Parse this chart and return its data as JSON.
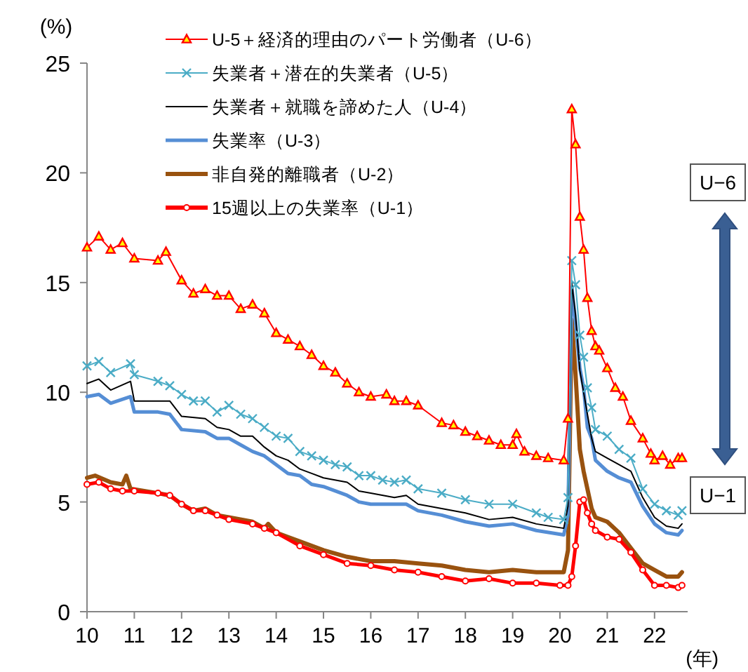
{
  "chart_data": {
    "type": "line",
    "xlabel": "(年)",
    "ylabel": "(%)",
    "xlim": [
      10,
      22.7
    ],
    "xticks": [
      10,
      11,
      12,
      13,
      14,
      15,
      16,
      17,
      18,
      19,
      20,
      21,
      22
    ],
    "ylim": [
      0,
      25
    ],
    "yticks": [
      0,
      5,
      10,
      15,
      20,
      25
    ],
    "grid": false,
    "legend": "top left",
    "annotations": [
      "U−6",
      "U−1"
    ],
    "series": [
      {
        "name": "U-5＋経済的理由のパート労働者（U-6）",
        "color": "#ff0000",
        "marker": "triangle",
        "x": [
          10,
          10.25,
          10.5,
          10.75,
          11,
          11.5,
          11.67,
          12,
          12.25,
          12.5,
          12.75,
          13,
          13.25,
          13.5,
          13.75,
          14,
          14.25,
          14.5,
          14.75,
          15,
          15.25,
          15.5,
          15.75,
          16,
          16.33,
          16.5,
          16.75,
          17,
          17.5,
          17.75,
          18,
          18.25,
          18.5,
          18.75,
          19,
          19.08,
          19.25,
          19.5,
          19.75,
          20.08,
          20.17,
          20.25,
          20.33,
          20.42,
          20.5,
          20.58,
          20.67,
          20.75,
          20.83,
          21,
          21.17,
          21.33,
          21.5,
          21.75,
          21.92,
          22,
          22.17,
          22.33,
          22.5,
          22.58
        ],
        "values": [
          16.6,
          17.1,
          16.5,
          16.8,
          16.1,
          16.0,
          16.4,
          15.1,
          14.5,
          14.7,
          14.4,
          14.4,
          13.8,
          14.0,
          13.6,
          12.7,
          12.4,
          12.1,
          11.7,
          11.2,
          10.9,
          10.4,
          10.0,
          9.8,
          9.9,
          9.6,
          9.6,
          9.4,
          8.6,
          8.5,
          8.2,
          8.0,
          7.8,
          7.6,
          7.6,
          8.1,
          7.3,
          7.1,
          7.0,
          6.9,
          8.8,
          22.9,
          21.3,
          18.0,
          16.5,
          14.3,
          12.8,
          12.1,
          11.9,
          11.1,
          10.2,
          9.8,
          8.7,
          7.9,
          7.2,
          6.9,
          7.1,
          6.7,
          7.0,
          7.0
        ]
      },
      {
        "name": "失業者＋潜在的失業者（U-5）",
        "color": "#4bacc6",
        "marker": "cross",
        "x": [
          10,
          10.25,
          10.5,
          10.92,
          11,
          11.5,
          11.75,
          12,
          12.25,
          12.5,
          12.75,
          13,
          13.25,
          13.5,
          13.75,
          14,
          14.25,
          14.5,
          14.75,
          15,
          15.25,
          15.5,
          15.75,
          16,
          16.25,
          16.5,
          16.75,
          17,
          17.5,
          18,
          18.5,
          19,
          19.5,
          19.75,
          20.08,
          20.17,
          20.25,
          20.33,
          20.42,
          20.5,
          20.58,
          20.67,
          20.75,
          21,
          21.25,
          21.5,
          21.75,
          22,
          22.25,
          22.5,
          22.58
        ],
        "values": [
          11.2,
          11.4,
          10.9,
          11.3,
          10.8,
          10.5,
          10.3,
          9.9,
          9.6,
          9.6,
          9.1,
          9.4,
          9.0,
          8.8,
          8.4,
          8.0,
          7.9,
          7.3,
          7.1,
          6.9,
          6.7,
          6.6,
          6.2,
          6.2,
          6.0,
          5.9,
          6.0,
          5.6,
          5.4,
          5.1,
          4.9,
          4.9,
          4.5,
          4.3,
          4.2,
          5.2,
          16.0,
          14.9,
          12.6,
          11.6,
          10.2,
          9.3,
          8.3,
          8.0,
          7.4,
          7.0,
          5.6,
          4.9,
          4.6,
          4.4,
          4.6
        ]
      },
      {
        "name": "失業者＋就職を諦めた人（U-4）",
        "color": "#000000",
        "marker": "none",
        "x": [
          10,
          10.25,
          10.5,
          10.92,
          11,
          11.5,
          11.75,
          12,
          12.5,
          12.75,
          13,
          13.25,
          13.5,
          13.75,
          14,
          14.25,
          14.5,
          14.75,
          15,
          15.5,
          15.75,
          16,
          16.5,
          16.75,
          17,
          17.5,
          18,
          18.5,
          19,
          19.5,
          20.08,
          20.17,
          20.25,
          20.33,
          20.42,
          20.5,
          20.58,
          20.67,
          20.75,
          21,
          21.25,
          21.5,
          21.75,
          22,
          22.25,
          22.5,
          22.58
        ],
        "values": [
          10.4,
          10.6,
          10.1,
          10.5,
          9.6,
          9.6,
          9.6,
          8.9,
          8.8,
          8.4,
          8.3,
          8.0,
          8.0,
          7.5,
          7.1,
          6.9,
          6.5,
          6.3,
          6.1,
          5.9,
          5.5,
          5.4,
          5.2,
          5.3,
          4.9,
          4.7,
          4.5,
          4.2,
          4.3,
          4.0,
          3.8,
          4.8,
          15.0,
          13.5,
          11.0,
          10.0,
          9.0,
          7.9,
          7.3,
          7.0,
          6.7,
          6.4,
          5.2,
          4.3,
          3.9,
          3.8,
          4.0
        ]
      },
      {
        "name": "失業率（U-3）",
        "color": "#558ed5",
        "marker": "none",
        "x": [
          10,
          10.25,
          10.5,
          10.92,
          11,
          11.5,
          11.75,
          12,
          12.5,
          12.75,
          13,
          13.25,
          13.5,
          13.75,
          14,
          14.25,
          14.5,
          14.75,
          15,
          15.5,
          15.75,
          16,
          16.5,
          16.75,
          17,
          17.5,
          18,
          18.5,
          19,
          19.5,
          20.08,
          20.17,
          20.25,
          20.33,
          20.42,
          20.5,
          20.58,
          20.67,
          20.75,
          21,
          21.25,
          21.5,
          21.75,
          22,
          22.25,
          22.5,
          22.58
        ],
        "values": [
          9.8,
          9.9,
          9.5,
          9.8,
          9.1,
          9.1,
          9.0,
          8.3,
          8.2,
          7.9,
          7.9,
          7.6,
          7.3,
          7.1,
          6.7,
          6.3,
          6.2,
          5.8,
          5.7,
          5.3,
          5.0,
          4.9,
          4.9,
          4.9,
          4.6,
          4.4,
          4.1,
          3.9,
          4.0,
          3.7,
          3.5,
          4.4,
          14.8,
          13.2,
          11.1,
          10.2,
          8.4,
          7.9,
          6.9,
          6.4,
          6.1,
          5.9,
          4.8,
          4.0,
          3.6,
          3.5,
          3.7
        ]
      },
      {
        "name": "非自発的離職者（U-2）",
        "color": "#99520f",
        "marker": "none",
        "x": [
          10,
          10.17,
          10.5,
          10.75,
          10.83,
          10.92,
          11.5,
          11.75,
          12,
          12.25,
          12.5,
          12.75,
          13,
          13.5,
          13.75,
          13.83,
          14,
          14.5,
          15,
          15.5,
          16,
          16.5,
          17,
          17.5,
          18,
          18.5,
          19,
          19.5,
          20.08,
          20.17,
          20.25,
          20.33,
          20.42,
          20.5,
          20.58,
          20.67,
          20.75,
          21,
          21.25,
          21.5,
          21.75,
          22,
          22.25,
          22.5,
          22.58
        ],
        "values": [
          6.1,
          6.2,
          5.9,
          5.8,
          6.2,
          5.6,
          5.4,
          5.3,
          4.9,
          4.6,
          4.7,
          4.4,
          4.3,
          4.1,
          3.8,
          4.0,
          3.6,
          3.2,
          2.8,
          2.5,
          2.3,
          2.3,
          2.2,
          2.1,
          1.9,
          1.8,
          1.9,
          1.8,
          1.8,
          2.8,
          13.3,
          10.8,
          7.4,
          6.4,
          5.6,
          4.7,
          4.3,
          4.1,
          3.6,
          2.9,
          2.2,
          1.9,
          1.6,
          1.6,
          1.8
        ]
      },
      {
        "name": "15週以上の失業率（U-1）",
        "color": "#ff0000",
        "marker": "circle",
        "x": [
          10,
          10.25,
          10.5,
          10.75,
          11,
          11.5,
          11.75,
          12,
          12.25,
          12.5,
          12.75,
          13,
          13.5,
          13.75,
          14,
          14.5,
          15,
          15.5,
          16,
          16.5,
          17,
          17.5,
          18,
          18.5,
          19,
          19.5,
          20,
          20.17,
          20.25,
          20.33,
          20.42,
          20.5,
          20.58,
          20.67,
          20.75,
          21,
          21.25,
          21.5,
          21.75,
          22,
          22.25,
          22.5,
          22.58
        ],
        "values": [
          5.8,
          5.9,
          5.6,
          5.5,
          5.5,
          5.4,
          5.3,
          4.9,
          4.6,
          4.6,
          4.4,
          4.2,
          4.0,
          3.8,
          3.6,
          3.0,
          2.6,
          2.2,
          2.1,
          1.9,
          1.8,
          1.6,
          1.4,
          1.5,
          1.3,
          1.3,
          1.2,
          1.2,
          1.6,
          3.0,
          5.0,
          5.1,
          4.5,
          4.0,
          3.7,
          3.4,
          3.3,
          2.7,
          1.9,
          1.2,
          1.2,
          1.1,
          1.2
        ]
      }
    ]
  }
}
